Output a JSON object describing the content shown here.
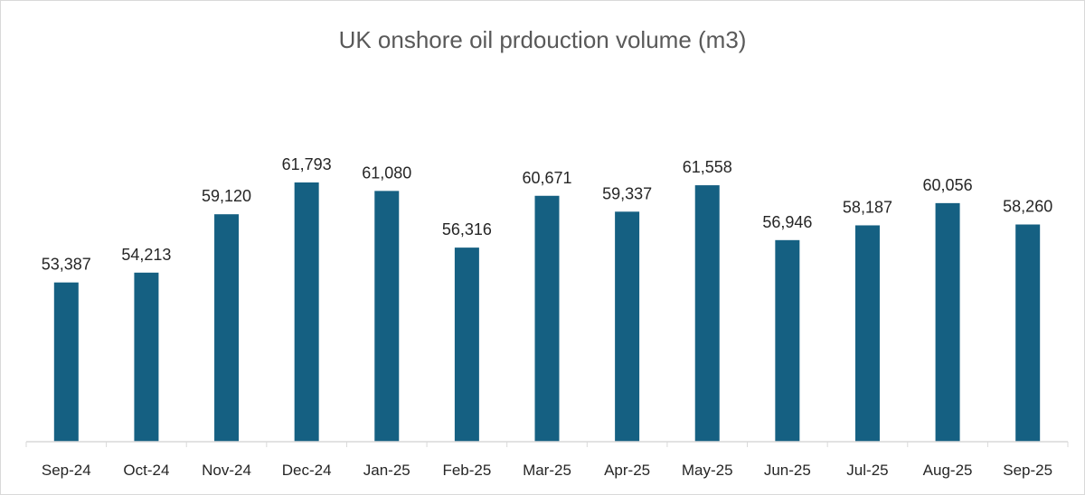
{
  "chart_data": {
    "type": "bar",
    "title": "UK onshore oil prdouction volume (m3)",
    "xlabel": "",
    "ylabel": "",
    "categories": [
      "Sep-24",
      "Oct-24",
      "Nov-24",
      "Dec-24",
      "Jan-25",
      "Feb-25",
      "Mar-25",
      "Apr-25",
      "May-25",
      "Jun-25",
      "Jul-25",
      "Aug-25",
      "Sep-25"
    ],
    "values": [
      53387,
      54213,
      59120,
      61793,
      61080,
      56316,
      60671,
      59337,
      61558,
      56946,
      58187,
      60056,
      58260
    ],
    "data_labels": [
      "53,387",
      "54,213",
      "59,120",
      "61,793",
      "61,080",
      "56,316",
      "60,671",
      "59,337",
      "61,558",
      "56,946",
      "58,187",
      "60,056",
      "58,260"
    ],
    "ylim": [
      40000,
      65000
    ],
    "grid": false,
    "legend": "none",
    "bar_color": "#156082",
    "axis_color": "#d9d9d9"
  }
}
